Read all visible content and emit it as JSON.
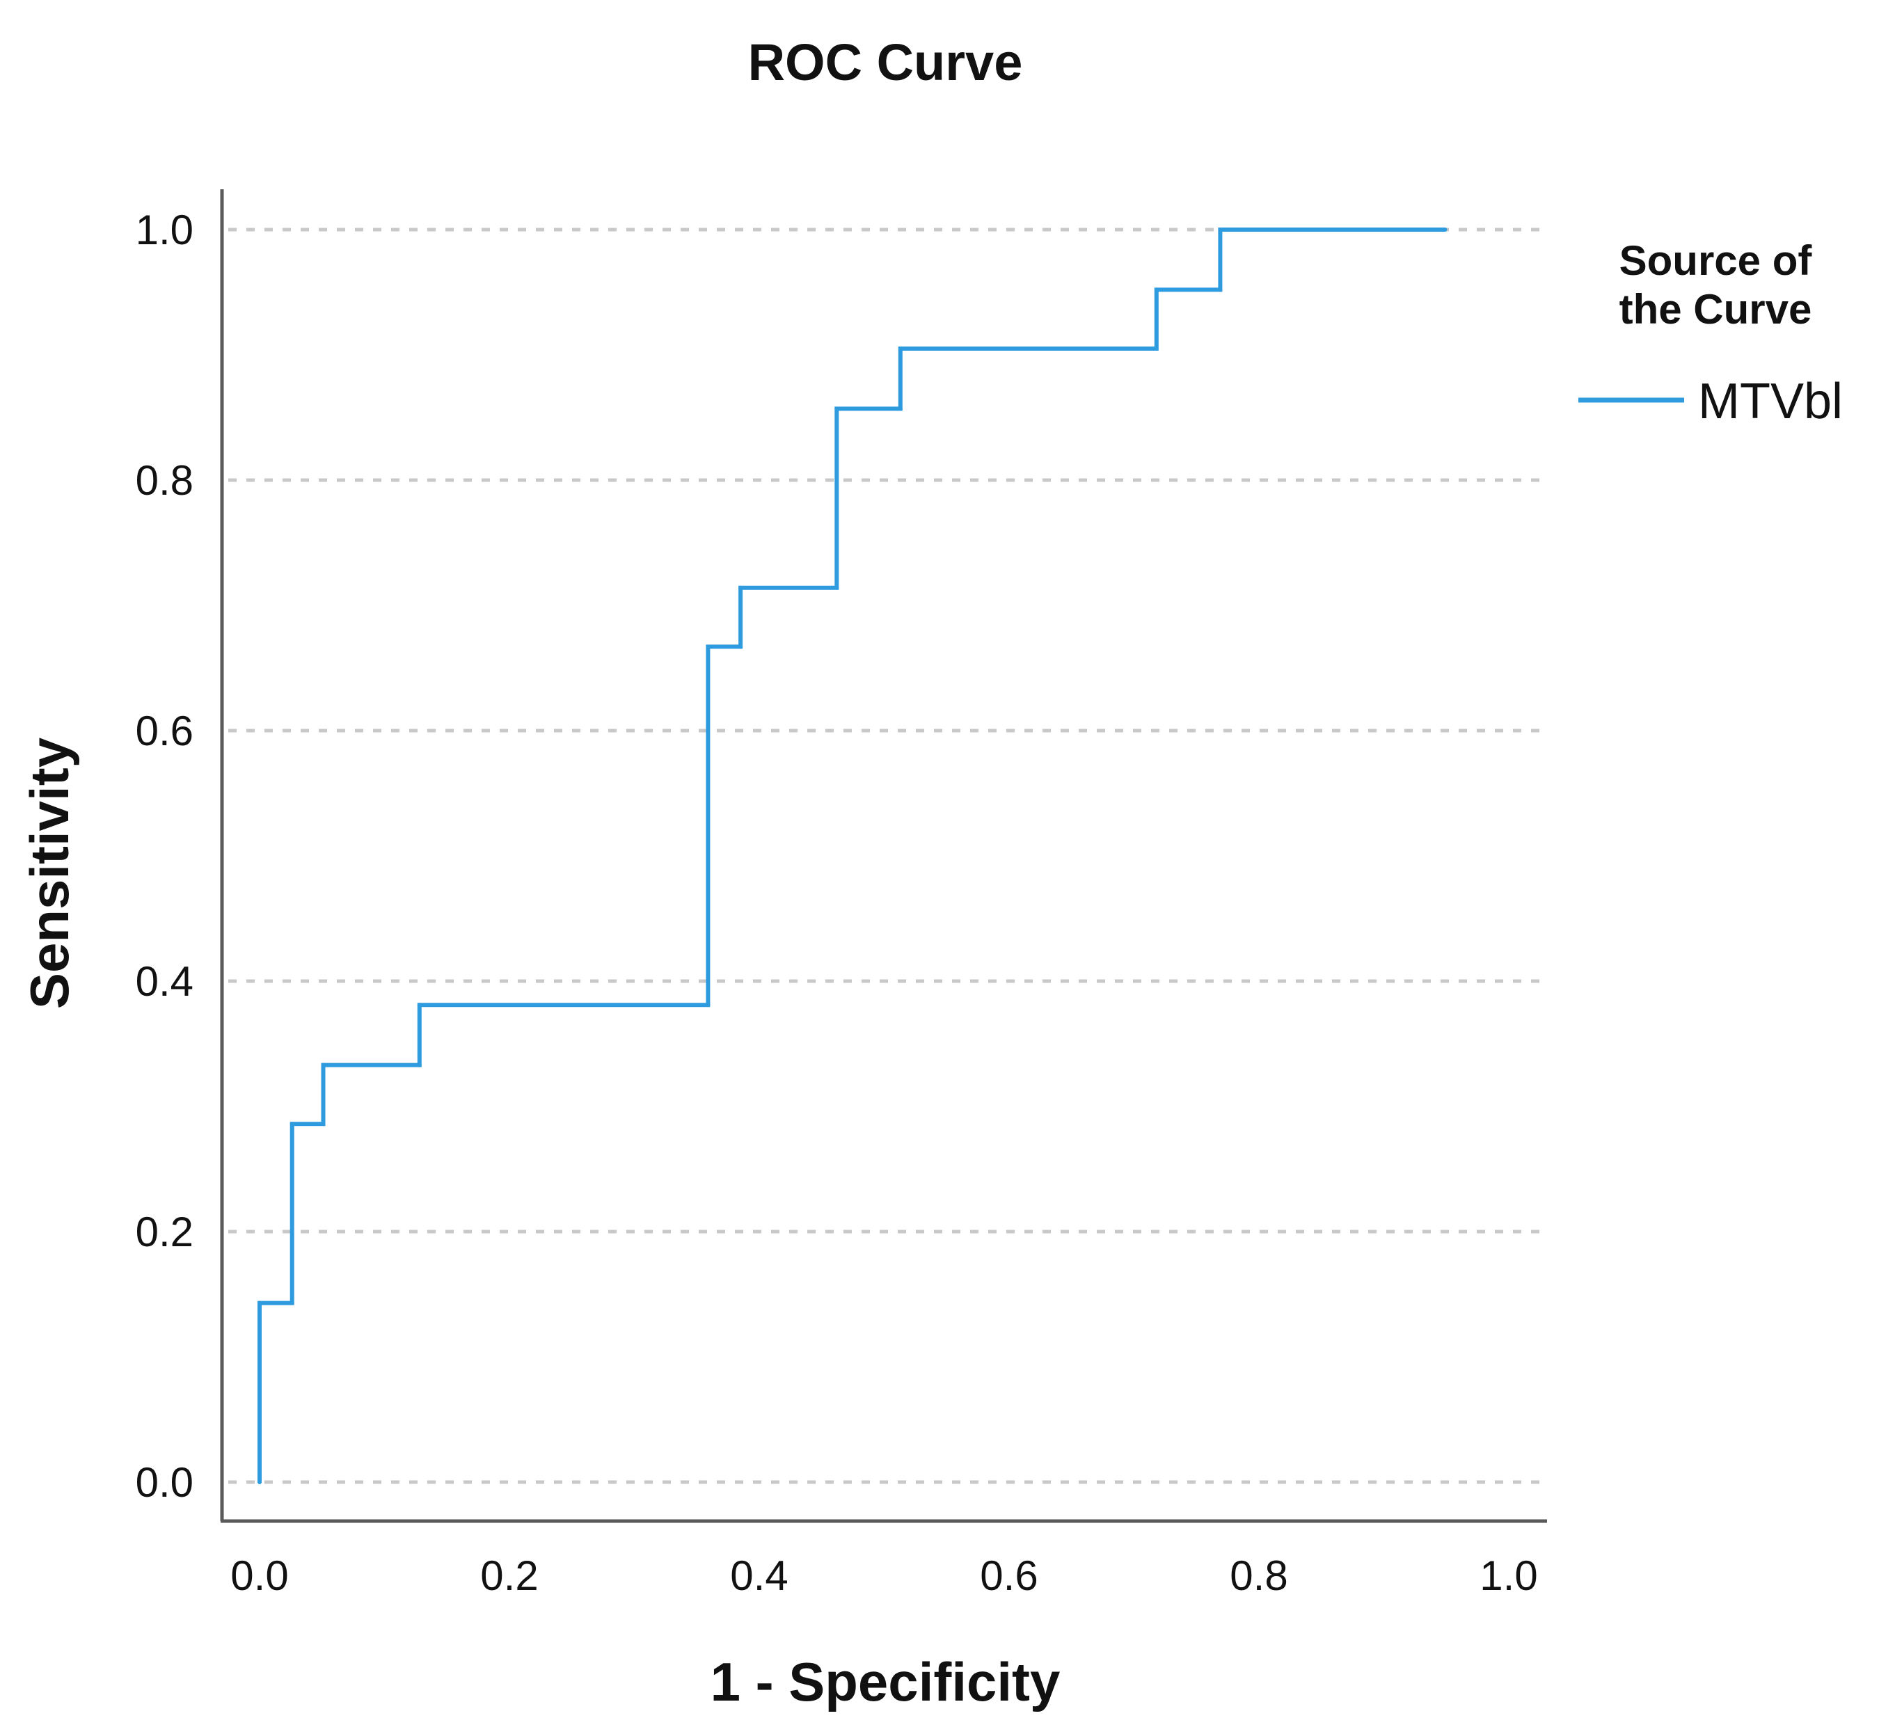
{
  "chart_data": {
    "type": "line",
    "title": "ROC Curve",
    "xlabel": "1 - Specificity",
    "ylabel": "Sensitivity",
    "xlim": [
      0,
      1
    ],
    "ylim": [
      0,
      1
    ],
    "grid": "horizontal-dashed",
    "x_ticks": [
      "0.0",
      "0.2",
      "0.4",
      "0.6",
      "0.8",
      "1.0"
    ],
    "y_ticks": [
      "0.0",
      "0.2",
      "0.4",
      "0.6",
      "0.8",
      "1.0"
    ],
    "legend": {
      "title_lines": [
        "Source of",
        "the Curve"
      ],
      "placement": "right",
      "entries": [
        {
          "name": "MTVbl",
          "color": "#2e9bdf"
        }
      ]
    },
    "series": [
      {
        "name": "MTVbl",
        "color": "#2e9bdf",
        "step": true,
        "points": [
          {
            "x": 0.0,
            "y": 0.0
          },
          {
            "x": 0.0,
            "y": 0.143
          },
          {
            "x": 0.026,
            "y": 0.143
          },
          {
            "x": 0.026,
            "y": 0.286
          },
          {
            "x": 0.051,
            "y": 0.286
          },
          {
            "x": 0.051,
            "y": 0.333
          },
          {
            "x": 0.128,
            "y": 0.333
          },
          {
            "x": 0.128,
            "y": 0.381
          },
          {
            "x": 0.359,
            "y": 0.381
          },
          {
            "x": 0.359,
            "y": 0.667
          },
          {
            "x": 0.385,
            "y": 0.667
          },
          {
            "x": 0.385,
            "y": 0.714
          },
          {
            "x": 0.462,
            "y": 0.714
          },
          {
            "x": 0.462,
            "y": 0.857
          },
          {
            "x": 0.513,
            "y": 0.857
          },
          {
            "x": 0.513,
            "y": 0.905
          },
          {
            "x": 0.718,
            "y": 0.905
          },
          {
            "x": 0.718,
            "y": 0.952
          },
          {
            "x": 0.769,
            "y": 0.952
          },
          {
            "x": 0.769,
            "y": 1.0
          },
          {
            "x": 0.949,
            "y": 1.0
          }
        ]
      }
    ]
  }
}
